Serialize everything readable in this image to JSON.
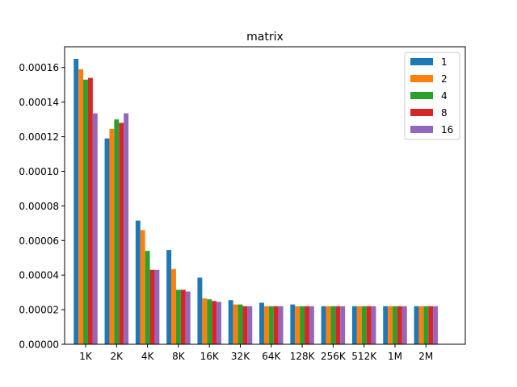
{
  "chart_data": {
    "type": "bar",
    "title": "matrix",
    "xlabel": "",
    "ylabel": "",
    "categories": [
      "1K",
      "2K",
      "4K",
      "8K",
      "16K",
      "32K",
      "64K",
      "128K",
      "256K",
      "512K",
      "1M",
      "2M"
    ],
    "ylim": [
      0,
      0.000172
    ],
    "yticks": [
      "0.00000",
      "0.00002",
      "0.00004",
      "0.00006",
      "0.00008",
      "0.00010",
      "0.00012",
      "0.00014",
      "0.00016"
    ],
    "ytick_values": [
      0,
      2e-05,
      4e-05,
      6e-05,
      8e-05,
      0.0001,
      0.00012,
      0.00014,
      0.00016
    ],
    "grid": false,
    "legend_position": "top-right",
    "series": [
      {
        "name": "1",
        "color": "#1f77b4",
        "values": [
          0.000165,
          0.000119,
          7.15e-05,
          5.45e-05,
          3.85e-05,
          2.55e-05,
          2.4e-05,
          2.3e-05,
          2.2e-05,
          2.2e-05,
          2.2e-05,
          2.2e-05
        ]
      },
      {
        "name": "2",
        "color": "#ff7f0e",
        "values": [
          0.000159,
          0.0001245,
          6.6e-05,
          4.35e-05,
          2.65e-05,
          2.3e-05,
          2.2e-05,
          2.2e-05,
          2.2e-05,
          2.2e-05,
          2.2e-05,
          2.2e-05
        ]
      },
      {
        "name": "4",
        "color": "#2ca02c",
        "values": [
          0.000153,
          0.00013,
          5.4e-05,
          3.15e-05,
          2.6e-05,
          2.3e-05,
          2.2e-05,
          2.2e-05,
          2.2e-05,
          2.2e-05,
          2.2e-05,
          2.2e-05
        ]
      },
      {
        "name": "8",
        "color": "#d62728",
        "values": [
          0.000154,
          0.000128,
          4.3e-05,
          3.15e-05,
          2.5e-05,
          2.2e-05,
          2.2e-05,
          2.2e-05,
          2.2e-05,
          2.2e-05,
          2.2e-05,
          2.2e-05
        ]
      },
      {
        "name": "16",
        "color": "#9467bd",
        "values": [
          0.0001335,
          0.0001335,
          4.3e-05,
          3.05e-05,
          2.45e-05,
          2.2e-05,
          2.2e-05,
          2.2e-05,
          2.2e-05,
          2.2e-05,
          2.2e-05,
          2.2e-05
        ]
      }
    ]
  }
}
